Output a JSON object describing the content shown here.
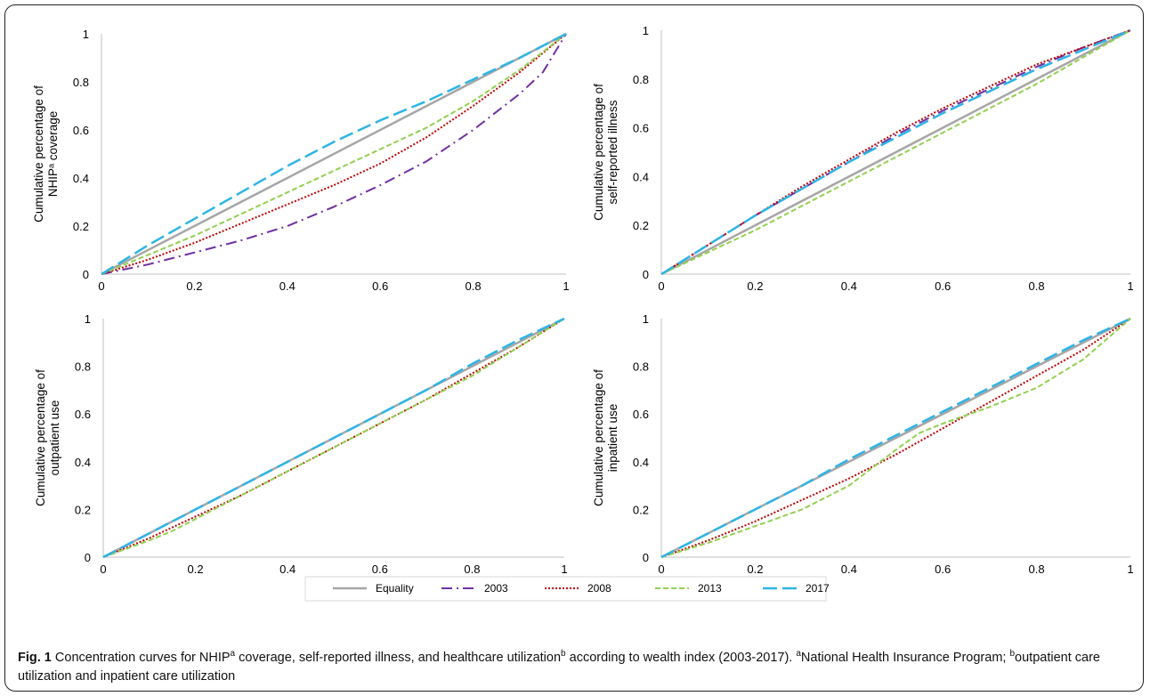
{
  "colors": {
    "Equality": "#a6a6a6",
    "2003": "#7030a0",
    "2008": "#c00000",
    "2013": "#92d050",
    "2017": "#2eb4e6"
  },
  "legend": [
    "Equality",
    "2003",
    "2008",
    "2013",
    "2017"
  ],
  "caption": {
    "fig_label": "Fig. 1",
    "p1": " Concentration curves for NHIP",
    "sup1": "a",
    "p2": " coverage, self-reported illness, and healthcare utilization",
    "sup2": "b",
    "p3": " according to wealth index (2003-2017). ",
    "sup3": "a",
    "p4": "National Health Insurance Program; ",
    "sup4": "b",
    "p5": "outpatient care utilization and inpatient care utilization"
  },
  "chart_data": [
    {
      "type": "line",
      "ylabel_lines": [
        "Cumulative percentage of",
        "NHIPᵃ coverage"
      ],
      "xlim": [
        0,
        1
      ],
      "ylim": [
        0,
        1
      ],
      "xticks": [
        "0",
        "0.2",
        "0.4",
        "0.6",
        "0.8",
        "1"
      ],
      "yticks": [
        "0",
        "0.2",
        "0.4",
        "0.6",
        "0.8",
        "1"
      ],
      "series": [
        {
          "name": "Equality",
          "x": [
            0,
            1
          ],
          "y": [
            0,
            1
          ]
        },
        {
          "name": "2003",
          "x": [
            0,
            0.1,
            0.2,
            0.3,
            0.4,
            0.5,
            0.6,
            0.7,
            0.8,
            0.9,
            0.95,
            1
          ],
          "y": [
            0,
            0.04,
            0.09,
            0.14,
            0.2,
            0.28,
            0.37,
            0.47,
            0.6,
            0.75,
            0.84,
            1
          ]
        },
        {
          "name": "2008",
          "x": [
            0,
            0.1,
            0.2,
            0.3,
            0.4,
            0.5,
            0.6,
            0.7,
            0.8,
            0.9,
            1
          ],
          "y": [
            0,
            0.06,
            0.13,
            0.21,
            0.29,
            0.37,
            0.46,
            0.57,
            0.7,
            0.84,
            1
          ]
        },
        {
          "name": "2013",
          "x": [
            0,
            0.1,
            0.2,
            0.3,
            0.4,
            0.5,
            0.6,
            0.7,
            0.8,
            0.9,
            1
          ],
          "y": [
            0,
            0.08,
            0.16,
            0.25,
            0.34,
            0.43,
            0.52,
            0.61,
            0.72,
            0.85,
            1
          ]
        },
        {
          "name": "2017",
          "x": [
            0,
            0.1,
            0.2,
            0.3,
            0.4,
            0.5,
            0.6,
            0.7,
            0.8,
            0.9,
            1
          ],
          "y": [
            0,
            0.12,
            0.23,
            0.34,
            0.45,
            0.55,
            0.64,
            0.72,
            0.81,
            0.9,
            1
          ]
        }
      ]
    },
    {
      "type": "line",
      "ylabel_lines": [
        "Cumulative percentage of",
        "self-reported illness"
      ],
      "xlim": [
        0,
        1
      ],
      "ylim": [
        0,
        1
      ],
      "xticks": [
        "0",
        "0.2",
        "0.4",
        "0.6",
        "0.8",
        "1"
      ],
      "yticks": [
        "0",
        "0.2",
        "0.4",
        "0.6",
        "0.8",
        "1"
      ],
      "series": [
        {
          "name": "Equality",
          "x": [
            0,
            1
          ],
          "y": [
            0,
            1
          ]
        },
        {
          "name": "2003",
          "x": [
            0,
            0.1,
            0.2,
            0.3,
            0.4,
            0.5,
            0.6,
            0.7,
            0.8,
            0.9,
            1
          ],
          "y": [
            0,
            0.12,
            0.24,
            0.35,
            0.46,
            0.57,
            0.67,
            0.76,
            0.85,
            0.93,
            1
          ]
        },
        {
          "name": "2008",
          "x": [
            0,
            0.1,
            0.2,
            0.3,
            0.4,
            0.5,
            0.6,
            0.7,
            0.8,
            0.9,
            1
          ],
          "y": [
            0,
            0.12,
            0.24,
            0.36,
            0.47,
            0.58,
            0.68,
            0.77,
            0.86,
            0.93,
            1
          ]
        },
        {
          "name": "2013",
          "x": [
            0,
            0.1,
            0.2,
            0.3,
            0.4,
            0.5,
            0.6,
            0.7,
            0.8,
            0.9,
            1
          ],
          "y": [
            0,
            0.09,
            0.18,
            0.28,
            0.38,
            0.48,
            0.58,
            0.68,
            0.78,
            0.89,
            1
          ]
        },
        {
          "name": "2017",
          "x": [
            0,
            0.1,
            0.2,
            0.3,
            0.4,
            0.5,
            0.6,
            0.7,
            0.8,
            0.9,
            1
          ],
          "y": [
            0,
            0.12,
            0.24,
            0.35,
            0.46,
            0.56,
            0.66,
            0.75,
            0.84,
            0.92,
            1
          ]
        }
      ]
    },
    {
      "type": "line",
      "ylabel_lines": [
        "Cumulative percentage of",
        "outpatient use"
      ],
      "xlim": [
        0,
        1
      ],
      "ylim": [
        0,
        1
      ],
      "xticks": [
        "0",
        "0.2",
        "0.4",
        "0.6",
        "0.8",
        "1"
      ],
      "yticks": [
        "0",
        "0.2",
        "0.4",
        "0.6",
        "0.8",
        "1"
      ],
      "series": [
        {
          "name": "Equality",
          "x": [
            0,
            1
          ],
          "y": [
            0,
            1
          ]
        },
        {
          "name": "2008",
          "x": [
            0,
            0.1,
            0.2,
            0.3,
            0.4,
            0.5,
            0.6,
            0.7,
            0.8,
            0.9,
            1
          ],
          "y": [
            0,
            0.08,
            0.17,
            0.26,
            0.36,
            0.46,
            0.56,
            0.66,
            0.77,
            0.88,
            1
          ]
        },
        {
          "name": "2013",
          "x": [
            0,
            0.1,
            0.15,
            0.2,
            0.3,
            0.4,
            0.5,
            0.6,
            0.7,
            0.8,
            0.9,
            1
          ],
          "y": [
            0,
            0.07,
            0.11,
            0.16,
            0.26,
            0.36,
            0.46,
            0.56,
            0.66,
            0.76,
            0.88,
            1
          ]
        },
        {
          "name": "2017",
          "x": [
            0,
            0.1,
            0.2,
            0.3,
            0.4,
            0.5,
            0.6,
            0.7,
            0.8,
            0.9,
            1
          ],
          "y": [
            0,
            0.1,
            0.2,
            0.3,
            0.4,
            0.5,
            0.6,
            0.7,
            0.81,
            0.91,
            1
          ]
        }
      ]
    },
    {
      "type": "line",
      "ylabel_lines": [
        "Cumulative percentage of",
        "inpatient use"
      ],
      "xlim": [
        0,
        1
      ],
      "ylim": [
        0,
        1
      ],
      "xticks": [
        "0",
        "0.2",
        "0.4",
        "0.6",
        "0.8",
        "1"
      ],
      "yticks": [
        "0",
        "0.2",
        "0.4",
        "0.6",
        "0.8",
        "1"
      ],
      "series": [
        {
          "name": "Equality",
          "x": [
            0,
            1
          ],
          "y": [
            0,
            1
          ]
        },
        {
          "name": "2008",
          "x": [
            0,
            0.1,
            0.2,
            0.3,
            0.4,
            0.5,
            0.6,
            0.7,
            0.8,
            0.9,
            1
          ],
          "y": [
            0,
            0.07,
            0.15,
            0.24,
            0.33,
            0.43,
            0.54,
            0.65,
            0.76,
            0.87,
            1
          ]
        },
        {
          "name": "2013",
          "x": [
            0,
            0.1,
            0.2,
            0.3,
            0.4,
            0.5,
            0.55,
            0.6,
            0.7,
            0.8,
            0.9,
            1
          ],
          "y": [
            0,
            0.06,
            0.13,
            0.2,
            0.3,
            0.45,
            0.52,
            0.56,
            0.63,
            0.71,
            0.83,
            1
          ]
        },
        {
          "name": "2017",
          "x": [
            0,
            0.1,
            0.2,
            0.3,
            0.4,
            0.5,
            0.6,
            0.7,
            0.8,
            0.9,
            1
          ],
          "y": [
            0,
            0.1,
            0.2,
            0.3,
            0.41,
            0.51,
            0.61,
            0.71,
            0.81,
            0.91,
            1
          ]
        }
      ]
    }
  ]
}
